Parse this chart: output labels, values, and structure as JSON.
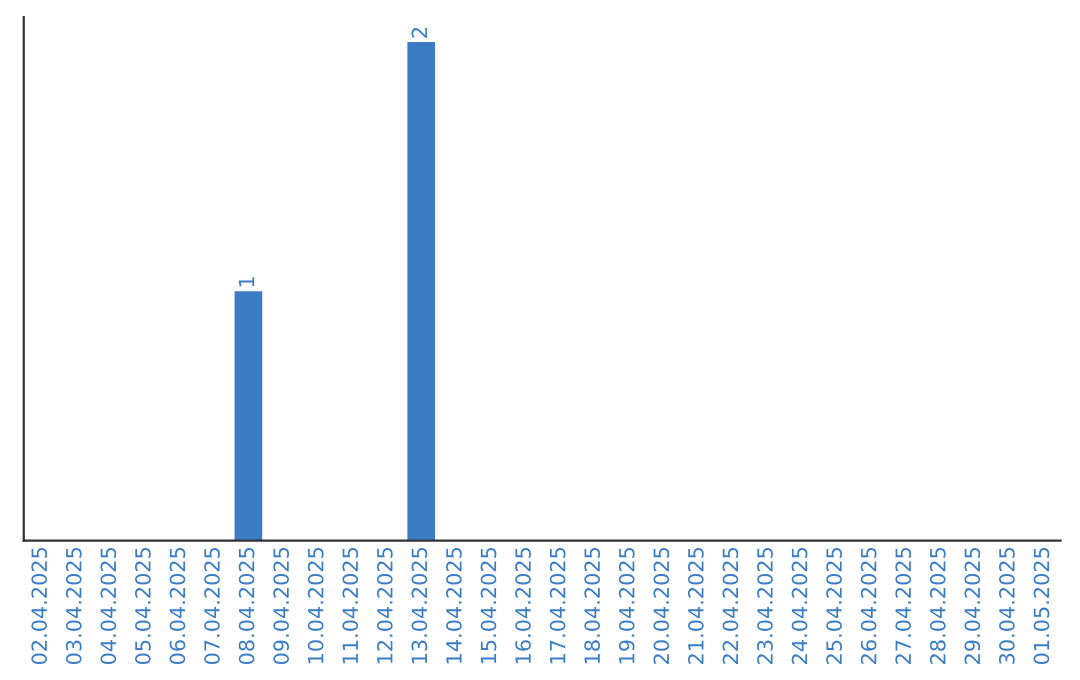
{
  "chart_data": {
    "type": "bar",
    "categories": [
      "02.04.2025",
      "03.04.2025",
      "04.04.2025",
      "05.04.2025",
      "06.04.2025",
      "07.04.2025",
      "08.04.2025",
      "09.04.2025",
      "10.04.2025",
      "11.04.2025",
      "12.04.2025",
      "13.04.2025",
      "14.04.2025",
      "15.04.2025",
      "16.04.2025",
      "17.04.2025",
      "18.04.2025",
      "19.04.2025",
      "20.04.2025",
      "21.04.2025",
      "22.04.2025",
      "23.04.2025",
      "24.04.2025",
      "25.04.2025",
      "26.04.2025",
      "27.04.2025",
      "28.04.2025",
      "29.04.2025",
      "30.04.2025",
      "01.05.2025"
    ],
    "values": [
      0,
      0,
      0,
      0,
      0,
      0,
      1,
      0,
      0,
      0,
      0,
      2,
      0,
      0,
      0,
      0,
      0,
      0,
      0,
      0,
      0,
      0,
      0,
      0,
      0,
      0,
      0,
      0,
      0,
      0
    ],
    "value_labels": [
      null,
      null,
      null,
      null,
      null,
      null,
      "1",
      null,
      null,
      null,
      null,
      "2",
      null,
      null,
      null,
      null,
      null,
      null,
      null,
      null,
      null,
      null,
      null,
      null,
      null,
      null,
      null,
      null,
      null,
      null
    ],
    "color": "#3b7dc4",
    "ylim": [
      0,
      2.1
    ],
    "tick_labels": "x",
    "grid": false,
    "legend": false
  }
}
